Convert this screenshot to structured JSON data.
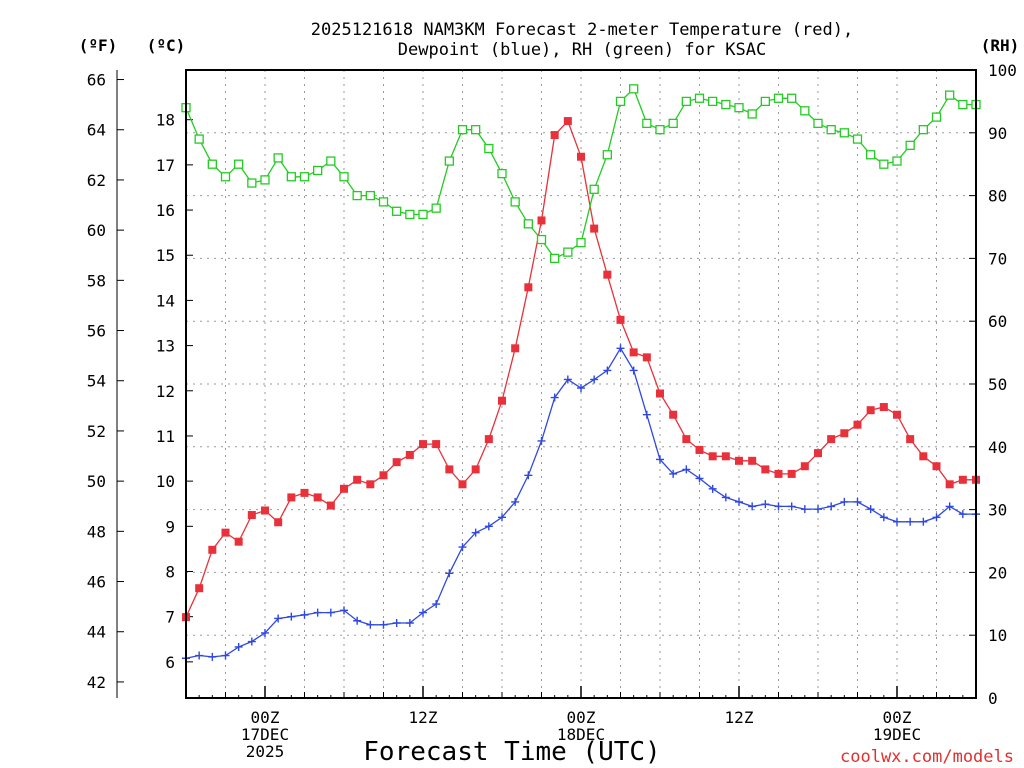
{
  "title_line1": "2025121618 NAM3KM Forecast 2-meter Temperature (red),",
  "title_line2": "Dewpoint (blue), RH (green) for KSAC",
  "unit_f": "(ºF)",
  "unit_c": "(ºC)",
  "unit_rh": "(RH)",
  "xlabel": "Forecast Time (UTC)",
  "credit": "coolwx.com/models",
  "colors": {
    "temp": "#e8313a",
    "dewp": "#2f48e0",
    "rh": "#22cc22"
  },
  "chart_data": {
    "type": "line",
    "title": "2025121618 NAM3KM Forecast 2-meter Temperature (red), Dewpoint (blue), RH (green) for KSAC",
    "xlabel": "Forecast Time (UTC)",
    "x_hours": [
      0,
      1,
      2,
      3,
      4,
      5,
      6,
      7,
      8,
      9,
      10,
      11,
      12,
      13,
      14,
      15,
      16,
      17,
      18,
      19,
      20,
      21,
      22,
      23,
      24,
      25,
      26,
      27,
      28,
      29,
      30,
      31,
      32,
      33,
      34,
      35,
      36,
      37,
      38,
      39,
      40,
      41,
      42,
      43,
      44,
      45,
      46,
      47,
      48,
      49,
      50,
      51,
      52,
      53,
      54,
      55,
      56,
      57,
      58,
      59,
      60
    ],
    "x_range_hours": [
      0,
      60
    ],
    "x_ticks": [
      {
        "hour": 6,
        "lines": [
          "00Z",
          "17DEC",
          "2025"
        ]
      },
      {
        "hour": 18,
        "lines": [
          "12Z"
        ]
      },
      {
        "hour": 30,
        "lines": [
          "00Z",
          "18DEC"
        ]
      },
      {
        "hour": 42,
        "lines": [
          "12Z"
        ]
      },
      {
        "hour": 54,
        "lines": [
          "00Z",
          "19DEC"
        ]
      }
    ],
    "y_left_c": {
      "range": [
        5.2,
        19.1
      ],
      "ticks": [
        6,
        7,
        8,
        9,
        10,
        11,
        12,
        13,
        14,
        15,
        16,
        17,
        18
      ]
    },
    "y_left_f": {
      "range": [
        41.36,
        66.38
      ],
      "ticks": [
        42,
        44,
        46,
        48,
        50,
        52,
        54,
        56,
        58,
        60,
        62,
        64,
        66
      ]
    },
    "y_right_rh": {
      "range": [
        0,
        100
      ],
      "ticks": [
        0,
        10,
        20,
        30,
        40,
        50,
        60,
        70,
        80,
        90,
        100
      ]
    },
    "series": [
      {
        "name": "Temperature (°C)",
        "color": "#e8313a",
        "marker": "filled-square",
        "values": [
          6.99,
          7.63,
          8.48,
          8.86,
          8.66,
          9.25,
          9.35,
          9.09,
          9.64,
          9.74,
          9.64,
          9.46,
          9.83,
          10.03,
          9.93,
          10.13,
          10.42,
          10.58,
          10.82,
          10.82,
          10.26,
          9.93,
          10.26,
          10.93,
          11.78,
          12.94,
          14.29,
          15.77,
          17.66,
          17.97,
          17.18,
          15.59,
          14.57,
          13.57,
          12.85,
          12.74,
          11.94,
          11.47,
          10.93,
          10.69,
          10.55,
          10.55,
          10.45,
          10.45,
          10.26,
          10.16,
          10.16,
          10.33,
          10.62,
          10.93,
          11.06,
          11.25,
          11.57,
          11.64,
          11.47,
          10.93,
          10.55,
          10.33,
          9.93,
          10.03,
          10.03
        ]
      },
      {
        "name": "Dewpoint (°C)",
        "color": "#2f48e0",
        "marker": "plus",
        "values": [
          6.08,
          6.14,
          6.11,
          6.14,
          6.33,
          6.45,
          6.64,
          6.96,
          7.0,
          7.04,
          7.09,
          7.09,
          7.14,
          6.91,
          6.82,
          6.82,
          6.86,
          6.86,
          7.09,
          7.28,
          7.96,
          8.54,
          8.86,
          9.0,
          9.2,
          9.54,
          10.13,
          10.89,
          11.85,
          12.25,
          12.06,
          12.25,
          12.45,
          12.94,
          12.45,
          11.47,
          10.48,
          10.16,
          10.26,
          10.06,
          9.83,
          9.64,
          9.54,
          9.44,
          9.49,
          9.44,
          9.44,
          9.38,
          9.38,
          9.44,
          9.54,
          9.54,
          9.38,
          9.2,
          9.1,
          9.1,
          9.1,
          9.2,
          9.44,
          9.27,
          9.27
        ]
      },
      {
        "name": "RH (%)",
        "color": "#22cc22",
        "marker": "open-square",
        "values": [
          94,
          89,
          85,
          83,
          85,
          82,
          82.5,
          86,
          83,
          83,
          84,
          85.5,
          83,
          80,
          80,
          79,
          77.5,
          77,
          77,
          78,
          85.5,
          90.5,
          90.5,
          87.5,
          83.5,
          79,
          75.5,
          73,
          70,
          71,
          72.5,
          81,
          86.5,
          95,
          97,
          91.5,
          90.5,
          91.5,
          95,
          95.5,
          95,
          94.5,
          94,
          93,
          95,
          95.5,
          95.5,
          93.5,
          91.5,
          90.5,
          90,
          89,
          86.5,
          85,
          85.5,
          88,
          90.5,
          92.5,
          96,
          94.5,
          94.5
        ]
      }
    ]
  }
}
